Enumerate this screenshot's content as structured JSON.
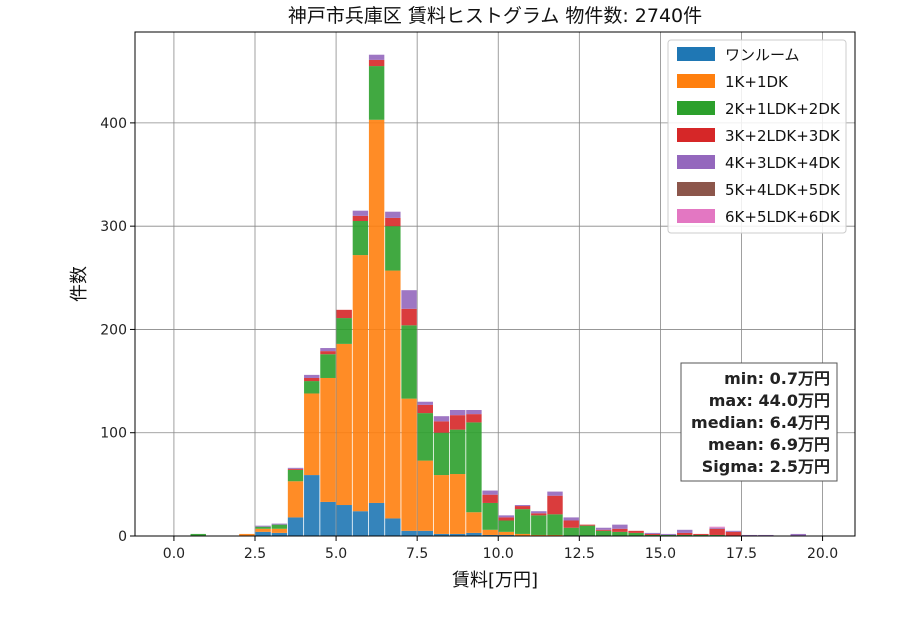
{
  "chart_data": {
    "type": "bar",
    "stacked": true,
    "title": "神戸市兵庫区 賃料ヒストグラム 物件数: 2740件",
    "xlabel": "賃料[万円]",
    "ylabel": "件数",
    "xlim": [
      -1.2,
      21.0
    ],
    "ylim": [
      0,
      488
    ],
    "bin_width": 0.5,
    "grid": true,
    "legend_position": "top-right",
    "x_ticks": [
      0.0,
      2.5,
      5.0,
      7.5,
      10.0,
      12.5,
      15.0,
      17.5,
      20.0
    ],
    "x_tick_labels": [
      "0.0",
      "2.5",
      "5.0",
      "7.5",
      "10.0",
      "12.5",
      "15.0",
      "17.5",
      "20.0"
    ],
    "y_ticks": [
      0,
      100,
      200,
      300,
      400
    ],
    "y_tick_labels": [
      "0",
      "100",
      "200",
      "300",
      "400"
    ],
    "bin_starts": [
      0.5,
      1.0,
      1.5,
      2.0,
      2.5,
      3.0,
      3.5,
      4.0,
      4.5,
      5.0,
      5.5,
      6.0,
      6.5,
      7.0,
      7.5,
      8.0,
      8.5,
      9.0,
      9.5,
      10.0,
      10.5,
      11.0,
      11.5,
      12.0,
      12.5,
      13.0,
      13.5,
      14.0,
      14.5,
      15.0,
      15.5,
      16.0,
      16.5,
      17.0,
      17.5,
      18.0,
      18.5,
      19.0
    ],
    "series": [
      {
        "name": "ワンルーム",
        "color": "#1f77b4",
        "values": [
          0,
          0,
          0,
          0,
          4,
          3,
          18,
          59,
          33,
          30,
          24,
          32,
          17,
          5,
          5,
          2,
          2,
          3,
          1,
          1,
          0,
          0,
          0,
          0,
          0,
          0,
          0,
          0,
          0,
          0,
          0,
          0,
          0,
          0,
          0,
          0,
          0,
          0
        ]
      },
      {
        "name": "1K+1DK",
        "color": "#ff7f0e",
        "values": [
          0,
          0,
          0,
          2,
          3,
          4,
          35,
          79,
          120,
          156,
          248,
          371,
          240,
          128,
          68,
          57,
          58,
          20,
          5,
          3,
          2,
          1,
          1,
          0,
          0,
          0,
          0,
          0,
          0,
          0,
          0,
          0,
          0,
          0,
          0,
          0,
          0,
          0
        ]
      },
      {
        "name": "2K+1LDK+2DK",
        "color": "#2ca02c",
        "values": [
          2,
          0,
          0,
          0,
          2,
          4,
          11,
          12,
          23,
          25,
          33,
          52,
          43,
          71,
          46,
          41,
          43,
          87,
          26,
          11,
          24,
          19,
          20,
          8,
          10,
          5,
          4,
          3,
          1,
          1,
          1,
          1,
          1,
          0,
          0,
          0,
          0,
          0
        ]
      },
      {
        "name": "3K+2LDK+3DK",
        "color": "#d62728",
        "values": [
          0,
          0,
          0,
          0,
          0,
          0,
          1,
          3,
          3,
          8,
          5,
          6,
          8,
          16,
          8,
          11,
          14,
          8,
          8,
          3,
          3,
          2,
          18,
          7,
          1,
          1,
          3,
          2,
          1,
          0,
          2,
          1,
          6,
          4,
          0,
          0,
          0,
          0
        ]
      },
      {
        "name": "4K+3LDK+4DK",
        "color": "#9467bd",
        "values": [
          0,
          0,
          0,
          0,
          1,
          1,
          1,
          3,
          3,
          0,
          5,
          5,
          6,
          18,
          3,
          5,
          5,
          4,
          4,
          2,
          1,
          2,
          4,
          3,
          0,
          2,
          4,
          0,
          1,
          1,
          3,
          0,
          1,
          1,
          1,
          1,
          0,
          2
        ]
      },
      {
        "name": "5K+4LDK+5DK",
        "color": "#8c564b",
        "values": [
          0,
          0,
          0,
          0,
          0,
          0,
          0,
          0,
          0,
          0,
          0,
          0,
          0,
          0,
          0,
          0,
          0,
          0,
          0,
          0,
          0,
          0,
          0,
          0,
          0,
          0,
          0,
          0,
          0,
          0,
          0,
          0,
          0,
          0,
          0,
          0,
          0,
          0
        ]
      },
      {
        "name": "6K+5LDK+6DK",
        "color": "#e377c2",
        "values": [
          0,
          0,
          0,
          0,
          0,
          0,
          0,
          0,
          0,
          0,
          0,
          0,
          0,
          0,
          0,
          0,
          0,
          0,
          0,
          0,
          0,
          0,
          0,
          0,
          0,
          0,
          0,
          0,
          0,
          0,
          0,
          0,
          1,
          0,
          0,
          0,
          0,
          0
        ]
      }
    ],
    "stats": {
      "min": "min: 0.7万円",
      "max": "max: 44.0万円",
      "median": "median: 6.4万円",
      "mean": "mean: 6.9万円",
      "sigma": "Sigma: 2.5万円"
    }
  }
}
